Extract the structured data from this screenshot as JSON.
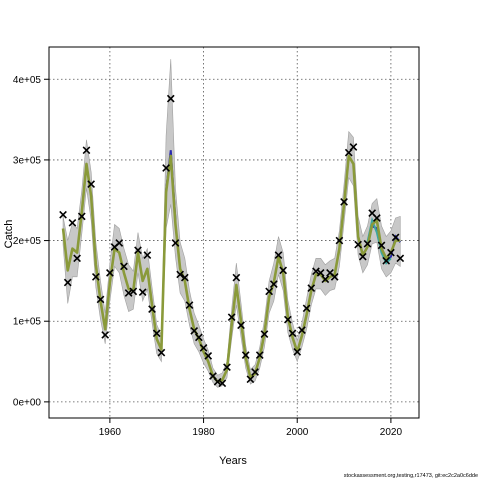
{
  "chart_data": {
    "type": "line",
    "xlabel": "Years",
    "ylabel": "Catch",
    "xlim": [
      1947,
      2026
    ],
    "ylim": [
      -20000,
      440000
    ],
    "x_ticks": [
      1960,
      1980,
      2000,
      2020
    ],
    "y_ticks": [
      0,
      100000,
      200000,
      300000,
      400000
    ],
    "y_tick_labels": [
      "0e+00",
      "1e+05",
      "2e+05",
      "3e+05",
      "4e+05"
    ],
    "grid": true,
    "footer": "stockassessment.org,testing,r17473, git:ec2c2a0c6dde",
    "colors": {
      "band": "#c8c8c8",
      "band_stroke": "#a0a0a0",
      "fit_line": "#8a9a3a",
      "observed": "#000000",
      "alt_fit_blue": "#2a2ab0",
      "alt_fit_teal": "#3aa6a0"
    },
    "fit": {
      "x": [
        1950,
        1951,
        1952,
        1953,
        1954,
        1955,
        1956,
        1957,
        1958,
        1959,
        1960,
        1961,
        1962,
        1963,
        1964,
        1965,
        1966,
        1967,
        1968,
        1969,
        1970,
        1971,
        1972,
        1973,
        1974,
        1975,
        1976,
        1977,
        1978,
        1979,
        1980,
        1981,
        1982,
        1983,
        1984,
        1985,
        1986,
        1987,
        1988,
        1989,
        1990,
        1991,
        1992,
        1993,
        1994,
        1995,
        1996,
        1997,
        1998,
        1999,
        2000,
        2001,
        2002,
        2003,
        2004,
        2005,
        2006,
        2007,
        2008,
        2009,
        2010,
        2011,
        2012,
        2013,
        2014,
        2015,
        2016,
        2017,
        2018,
        2019,
        2020,
        2021,
        2022
      ],
      "y": [
        215000,
        163000,
        190000,
        185000,
        235000,
        295000,
        255000,
        170000,
        125000,
        90000,
        148000,
        190000,
        185000,
        160000,
        140000,
        138000,
        185000,
        150000,
        165000,
        120000,
        78000,
        65000,
        260000,
        305000,
        220000,
        165000,
        150000,
        115000,
        90000,
        78000,
        62000,
        50000,
        32000,
        25000,
        27000,
        40000,
        95000,
        145000,
        100000,
        55000,
        30000,
        35000,
        55000,
        85000,
        130000,
        148000,
        180000,
        160000,
        105000,
        80000,
        62000,
        82000,
        108000,
        138000,
        158000,
        158000,
        150000,
        155000,
        158000,
        190000,
        245000,
        305000,
        295000,
        205000,
        182000,
        192000,
        220000,
        225000,
        190000,
        178000,
        185000,
        200000,
        200000
      ],
      "lower": [
        195000,
        122000,
        155000,
        155000,
        208000,
        265000,
        225000,
        142000,
        102000,
        72000,
        125000,
        168000,
        160000,
        132000,
        112000,
        115000,
        160000,
        125000,
        140000,
        98000,
        60000,
        50000,
        215000,
        245000,
        180000,
        135000,
        125000,
        95000,
        72000,
        62000,
        48000,
        38000,
        24000,
        18000,
        20000,
        30000,
        78000,
        120000,
        80000,
        42000,
        22000,
        26000,
        42000,
        68000,
        110000,
        125000,
        158000,
        138000,
        86000,
        65000,
        50000,
        68000,
        90000,
        120000,
        140000,
        140000,
        132000,
        138000,
        140000,
        168000,
        222000,
        278000,
        268000,
        182000,
        160000,
        170000,
        196000,
        198000,
        165000,
        155000,
        160000,
        172000,
        168000
      ],
      "upper": [
        230000,
        200000,
        222000,
        215000,
        262000,
        325000,
        285000,
        198000,
        150000,
        110000,
        172000,
        220000,
        215000,
        190000,
        170000,
        162000,
        210000,
        178000,
        190000,
        142000,
        96000,
        82000,
        330000,
        425000,
        265000,
        198000,
        178000,
        138000,
        110000,
        95000,
        78000,
        64000,
        42000,
        33000,
        36000,
        50000,
        115000,
        172000,
        122000,
        70000,
        40000,
        46000,
        68000,
        102000,
        150000,
        172000,
        205000,
        185000,
        126000,
        98000,
        76000,
        98000,
        128000,
        158000,
        178000,
        178000,
        170000,
        175000,
        178000,
        212000,
        270000,
        335000,
        328000,
        230000,
        205000,
        218000,
        246000,
        252000,
        218000,
        205000,
        212000,
        228000,
        230000
      ]
    },
    "alt_fits": [
      {
        "x": [
          2016,
          2017,
          2018,
          2019,
          2020,
          2021,
          2022
        ],
        "y": [
          218000,
          215000,
          192000,
          175000,
          180000,
          205000,
          198000
        ],
        "color": "#2a2ab0"
      },
      {
        "x": [
          2015,
          2016,
          2017,
          2018,
          2019,
          2020
        ],
        "y": [
          198000,
          225000,
          210000,
          185000,
          172000,
          178000
        ],
        "color": "#3aa6a0"
      },
      {
        "x": [
          1972,
          1973,
          1974
        ],
        "y": [
          262000,
          312000,
          225000
        ],
        "color": "#2a2ab0"
      }
    ],
    "observed": {
      "x": [
        1950,
        1951,
        1952,
        1953,
        1954,
        1955,
        1956,
        1957,
        1958,
        1959,
        1960,
        1961,
        1962,
        1963,
        1964,
        1965,
        1966,
        1967,
        1968,
        1969,
        1970,
        1971,
        1972,
        1973,
        1974,
        1975,
        1976,
        1977,
        1978,
        1979,
        1980,
        1981,
        1982,
        1983,
        1984,
        1985,
        1986,
        1987,
        1988,
        1989,
        1990,
        1991,
        1992,
        1993,
        1994,
        1995,
        1996,
        1997,
        1998,
        1999,
        2000,
        2001,
        2002,
        2003,
        2004,
        2005,
        2006,
        2007,
        2008,
        2009,
        2010,
        2011,
        2012,
        2013,
        2014,
        2015,
        2016,
        2017,
        2018,
        2019,
        2020,
        2021,
        2022
      ],
      "y": [
        232000,
        148000,
        222000,
        178000,
        230000,
        312000,
        270000,
        155000,
        127000,
        83000,
        160000,
        192000,
        197000,
        168000,
        135000,
        137000,
        188000,
        136000,
        182000,
        115000,
        85000,
        61000,
        290000,
        376000,
        197000,
        158000,
        154000,
        120000,
        88000,
        80000,
        67000,
        57000,
        32000,
        25000,
        23000,
        43000,
        105000,
        154000,
        95000,
        58000,
        28000,
        37000,
        58000,
        84000,
        137000,
        146000,
        182000,
        163000,
        102000,
        85000,
        62000,
        89000,
        116000,
        141000,
        162000,
        160000,
        152000,
        160000,
        155000,
        200000,
        248000,
        309000,
        316000,
        195000,
        180000,
        196000,
        234000,
        228000,
        194000,
        175000,
        185000,
        204000,
        178000
      ]
    }
  }
}
